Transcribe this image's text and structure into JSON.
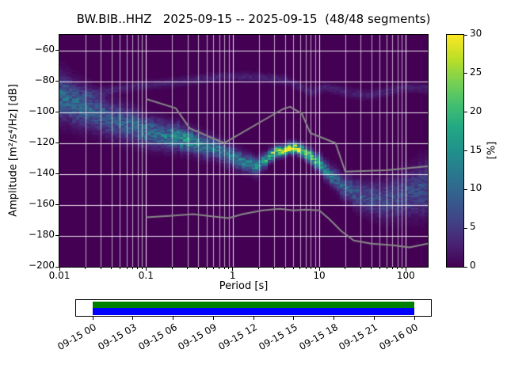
{
  "title": "BW.BIB..HHZ   2025-09-15 -- 2025-09-15  (48/48 segments)",
  "station": "BW.BIB..HHZ",
  "date_range": "2025-09-15 -- 2025-09-15",
  "segments": "48/48",
  "chart_data": {
    "type": "heatmap",
    "subtype": "ppsd-probability",
    "title": "BW.BIB..HHZ   2025-09-15 -- 2025-09-15  (48/48 segments)",
    "xlabel": "Period [s]",
    "ylabel": "Amplitude [m²/s⁴/Hz] [dB]",
    "x_scale": "log",
    "xlim": [
      0.01,
      179
    ],
    "ylim": [
      -200,
      -50
    ],
    "grid": true,
    "grid_color": "#ffffff",
    "background_value_color": "#440154",
    "x_ticks": {
      "values": [
        0.01,
        0.1,
        1,
        10,
        100
      ],
      "labels": [
        "0.01",
        "0.1",
        "1",
        "10",
        "100"
      ]
    },
    "y_ticks": {
      "values": [
        -60,
        -80,
        -100,
        -120,
        -140,
        -160,
        -180,
        -200
      ],
      "labels": [
        "−60",
        "−80",
        "−100",
        "−120",
        "−140",
        "−160",
        "−180",
        "−200"
      ]
    },
    "colorbar": {
      "label": "[%]",
      "min": 0,
      "max": 30,
      "ticks": [
        0,
        5,
        10,
        15,
        20,
        25,
        30
      ],
      "tick_labels": [
        "0",
        "5",
        "10",
        "15",
        "20",
        "25",
        "30"
      ]
    },
    "colormap_stops": [
      [
        0.0,
        "#440154"
      ],
      [
        0.1,
        "#482475"
      ],
      [
        0.2,
        "#414487"
      ],
      [
        0.3,
        "#355f8d"
      ],
      [
        0.4,
        "#2a788e"
      ],
      [
        0.5,
        "#21918c"
      ],
      [
        0.6,
        "#22a884"
      ],
      [
        0.7,
        "#44bf70"
      ],
      [
        0.8,
        "#7ad151"
      ],
      [
        0.9,
        "#bddf26"
      ],
      [
        1.0,
        "#fde725"
      ]
    ],
    "ppsd_ridge": {
      "comment_units": "periods in s, center in dB, sigma in dB, peak in percent",
      "periods": [
        0.01,
        0.02,
        0.035,
        0.06,
        0.1,
        0.15,
        0.22,
        0.3,
        0.45,
        0.7,
        1.0,
        1.4,
        1.8,
        2.2,
        2.8,
        3.5,
        4.5,
        5.5,
        7,
        9,
        12,
        16,
        22,
        30,
        45,
        65,
        100,
        150,
        179
      ],
      "center_db": [
        -90,
        -97,
        -103,
        -108,
        -112,
        -114,
        -116,
        -118,
        -121,
        -125,
        -129,
        -133,
        -135,
        -133,
        -128,
        -125,
        -123.5,
        -123.5,
        -126,
        -131,
        -138,
        -145,
        -150,
        -154,
        -157,
        -156,
        -153,
        -150,
        -149
      ],
      "sigma_db": [
        9,
        8,
        7,
        6.5,
        6,
        5.5,
        5,
        4.5,
        4.5,
        4,
        4,
        3.5,
        3.5,
        3,
        2.5,
        2.2,
        2.2,
        2.2,
        2.5,
        3,
        3.5,
        4,
        5,
        6,
        7,
        8,
        9,
        10,
        10
      ],
      "peak_percent": [
        10,
        9,
        8,
        9,
        10,
        11,
        13,
        15,
        12,
        11,
        12,
        12,
        12,
        14,
        20,
        27,
        30,
        30,
        25,
        17,
        12,
        10,
        8,
        7,
        6,
        6,
        6,
        7,
        7
      ]
    },
    "secondary_band": {
      "periods": [
        0.02,
        0.04,
        0.08,
        0.2,
        0.5,
        1,
        2,
        4,
        8,
        12,
        20,
        35,
        60,
        100,
        179
      ],
      "center_db": [
        -89,
        -86,
        -83,
        -81,
        -78,
        -77,
        -77.5,
        -79,
        -87,
        -84,
        -87,
        -89,
        -87,
        -84,
        -85
      ],
      "sigma_db": 2,
      "peak_percent": 2.5
    },
    "noise_models": {
      "color": "#888888",
      "nhnm": [
        [
          0.1,
          -91.5
        ],
        [
          0.22,
          -97.4
        ],
        [
          0.32,
          -110.5
        ],
        [
          0.8,
          -120
        ],
        [
          3.8,
          -98
        ],
        [
          4.6,
          -96.5
        ],
        [
          6.3,
          -101
        ],
        [
          7.9,
          -113.5
        ],
        [
          15.4,
          -120
        ],
        [
          20,
          -138.5
        ],
        [
          60,
          -137.5
        ],
        [
          179,
          -135
        ]
      ],
      "nlnm": [
        [
          0.1,
          -168
        ],
        [
          0.2,
          -167
        ],
        [
          0.35,
          -166
        ],
        [
          0.6,
          -167.5
        ],
        [
          0.9,
          -168.5
        ],
        [
          1.3,
          -166
        ],
        [
          2.2,
          -163.5
        ],
        [
          3.5,
          -162.5
        ],
        [
          5,
          -163.5
        ],
        [
          7,
          -163
        ],
        [
          10,
          -163.5
        ],
        [
          13,
          -169
        ],
        [
          18,
          -177
        ],
        [
          25,
          -183
        ],
        [
          40,
          -185
        ],
        [
          70,
          -186
        ],
        [
          110,
          -187.5
        ],
        [
          179,
          -185
        ]
      ]
    }
  },
  "timeline": {
    "tick_labels": [
      "09-15 00",
      "09-15 03",
      "09-15 06",
      "09-15 09",
      "09-15 12",
      "09-15 15",
      "09-15 18",
      "09-15 21",
      "09-16 00"
    ],
    "bar_colors": {
      "green": "#008000",
      "blue": "#0000ff"
    }
  }
}
